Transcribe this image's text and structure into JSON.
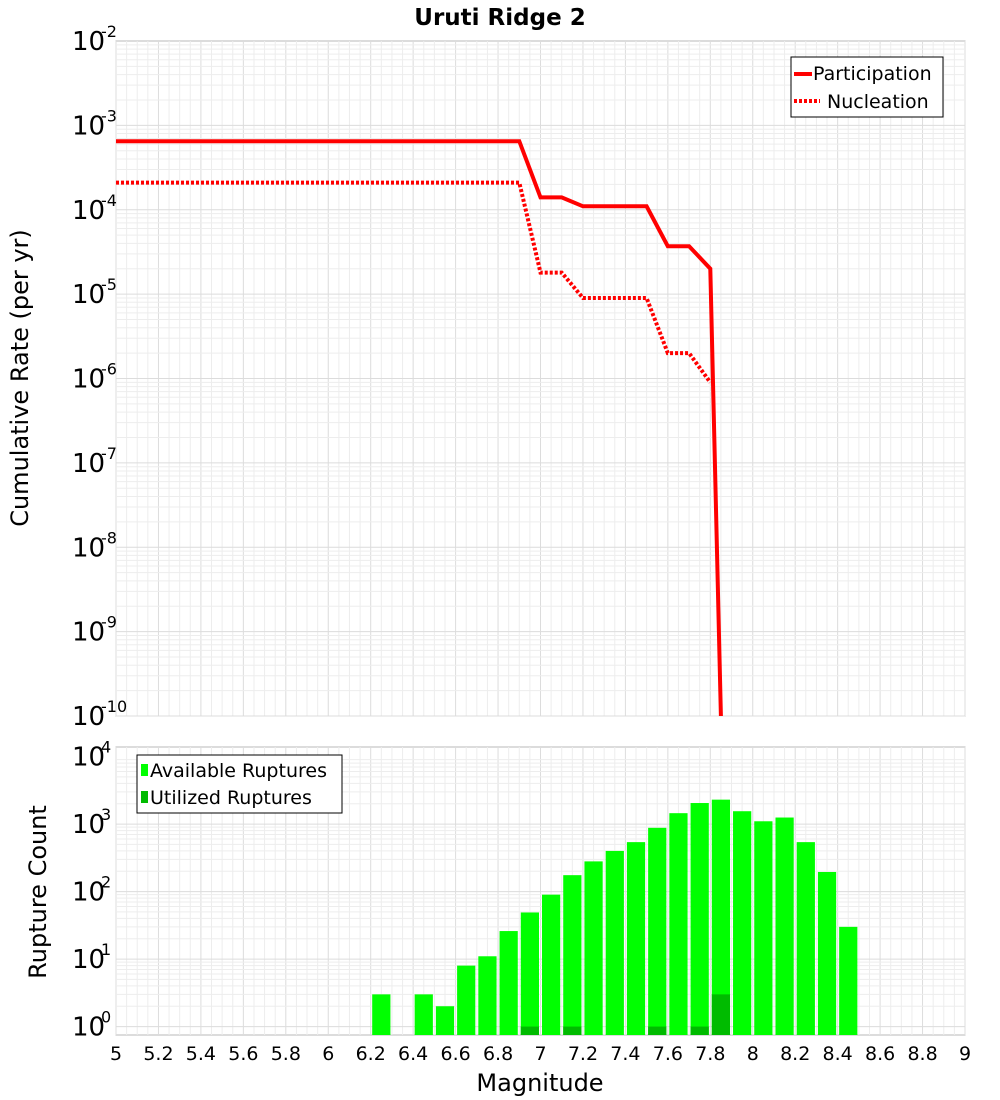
{
  "chart_data": [
    {
      "type": "line",
      "title": "Uruti Ridge 2",
      "ylabel": "Cumulative Rate (per yr)",
      "xlabel": "",
      "xlim": [
        5,
        9
      ],
      "ylim": [
        1e-10,
        0.01
      ],
      "yscale": "log",
      "grid": true,
      "legend_position": "top-right",
      "y_tick_labels": [
        {
          "base": "10",
          "exp": "-2"
        },
        {
          "base": "10",
          "exp": "-3"
        },
        {
          "base": "10",
          "exp": "-4"
        },
        {
          "base": "10",
          "exp": "-5"
        },
        {
          "base": "10",
          "exp": "-6"
        },
        {
          "base": "10",
          "exp": "-7"
        },
        {
          "base": "10",
          "exp": "-8"
        },
        {
          "base": "10",
          "exp": "-9"
        },
        {
          "base": "10",
          "exp": "-10"
        }
      ],
      "series": [
        {
          "name": "Participation",
          "style": "solid",
          "color": "#ff0000",
          "x": [
            5.0,
            6.9,
            7.0,
            7.1,
            7.2,
            7.3,
            7.4,
            7.5,
            7.6,
            7.7,
            7.8,
            7.85
          ],
          "y": [
            0.00065,
            0.00065,
            0.00014,
            0.00014,
            0.00011,
            0.00011,
            0.00011,
            0.00011,
            3.7e-05,
            3.7e-05,
            2e-05,
            1e-10
          ]
        },
        {
          "name": "Nucleation",
          "style": "dotted",
          "color": "#ff0000",
          "x": [
            5.0,
            6.9,
            7.0,
            7.1,
            7.2,
            7.3,
            7.4,
            7.5,
            7.6,
            7.7,
            7.8
          ],
          "y": [
            0.00021,
            0.00021,
            1.8e-05,
            1.8e-05,
            9e-06,
            9e-06,
            9e-06,
            9e-06,
            2e-06,
            2e-06,
            9e-07
          ]
        }
      ]
    },
    {
      "type": "bar",
      "title": "",
      "xlabel": "Magnitude",
      "ylabel": "Rupture Count",
      "xlim": [
        5,
        9
      ],
      "ylim": [
        0.75,
        10000
      ],
      "yscale": "log",
      "grid": true,
      "legend_position": "top-left",
      "x_ticks": [
        "5",
        "5.2",
        "5.4",
        "5.6",
        "5.8",
        "6",
        "6.2",
        "6.4",
        "6.6",
        "6.8",
        "7",
        "7.2",
        "7.4",
        "7.6",
        "7.8",
        "8",
        "8.2",
        "8.4",
        "8.6",
        "8.8",
        "9"
      ],
      "y_tick_labels": [
        {
          "base": "10",
          "exp": "4"
        },
        {
          "base": "10",
          "exp": "3"
        },
        {
          "base": "10",
          "exp": "2"
        },
        {
          "base": "10",
          "exp": "1"
        },
        {
          "base": "10",
          "exp": "0"
        }
      ],
      "x": [
        6.25,
        6.35,
        6.45,
        6.55,
        6.65,
        6.75,
        6.85,
        6.95,
        7.05,
        7.15,
        7.25,
        7.35,
        7.45,
        7.55,
        7.65,
        7.75,
        7.85,
        7.95,
        8.05,
        8.15,
        8.25,
        8.35,
        8.45
      ],
      "series": [
        {
          "name": "Available Ruptures",
          "color": "#00ff00",
          "values": [
            3,
            0,
            3,
            2,
            8,
            11,
            26,
            49,
            90,
            175,
            280,
            400,
            540,
            880,
            1450,
            2050,
            2300,
            1550,
            1100,
            1250,
            540,
            195,
            30
          ]
        },
        {
          "name": "Utilized Ruptures",
          "color": "#00bb00",
          "values": [
            0,
            0,
            0,
            0,
            0,
            0,
            0,
            1,
            0,
            1,
            0,
            0,
            0,
            1,
            0,
            1,
            3,
            0,
            0,
            0,
            0,
            0,
            0
          ]
        }
      ]
    }
  ]
}
